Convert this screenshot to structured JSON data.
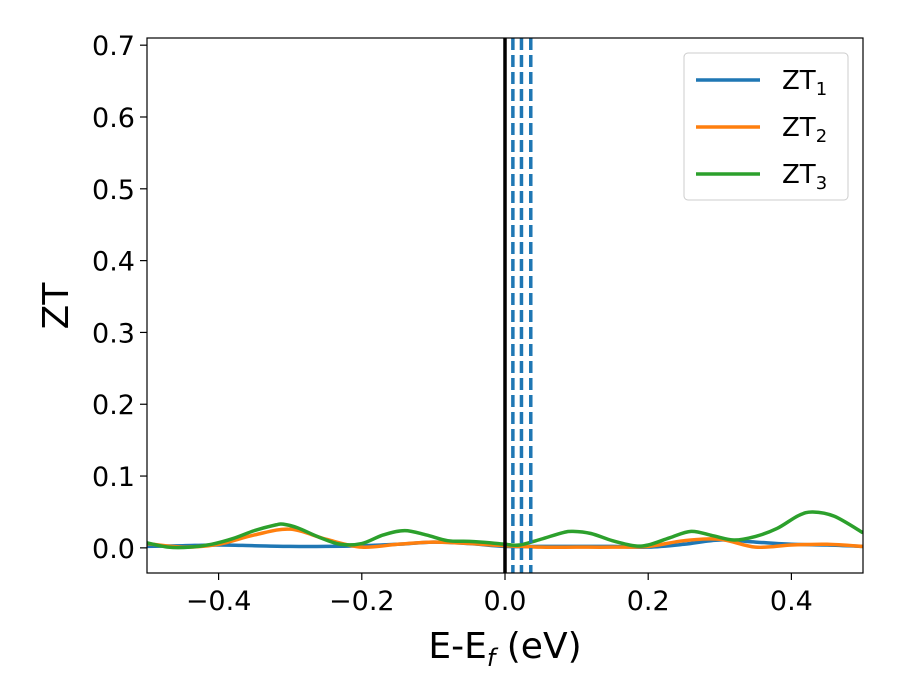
{
  "chart_data": {
    "type": "line",
    "title": "",
    "xlabel": "E-E",
    "xlabel_sub": "f",
    "xlabel_unit": " (eV)",
    "ylabel": "ZT",
    "xlim": [
      -0.5,
      0.5
    ],
    "ylim": [
      -0.035,
      0.71
    ],
    "x_ticks": [
      -0.4,
      -0.2,
      0.0,
      0.2,
      0.4
    ],
    "x_tick_labels": [
      "−0.4",
      "−0.2",
      "0.0",
      "0.2",
      "0.4"
    ],
    "y_ticks": [
      0.0,
      0.1,
      0.2,
      0.3,
      0.4,
      0.5,
      0.6,
      0.7
    ],
    "y_tick_labels": [
      "0.0",
      "0.1",
      "0.2",
      "0.3",
      "0.4",
      "0.5",
      "0.6",
      "0.7"
    ],
    "grid": false,
    "legend": "top-right",
    "series": [
      {
        "name": "ZT",
        "name_sub": "1",
        "color": "#1f77b4",
        "x": [
          -0.5,
          -0.45,
          -0.4,
          -0.35,
          -0.3,
          -0.25,
          -0.2,
          -0.15,
          -0.1,
          -0.05,
          0.0,
          0.05,
          0.1,
          0.15,
          0.2,
          0.25,
          0.3,
          0.35,
          0.4,
          0.45,
          0.5
        ],
        "y": [
          0.002,
          0.003,
          0.004,
          0.003,
          0.002,
          0.002,
          0.003,
          0.005,
          0.008,
          0.006,
          0.002,
          0.002,
          0.002,
          0.002,
          0.001,
          0.005,
          0.011,
          0.008,
          0.005,
          0.004,
          0.002
        ]
      },
      {
        "name": "ZT",
        "name_sub": "2",
        "color": "#ff7f0e",
        "x": [
          -0.5,
          -0.45,
          -0.4,
          -0.35,
          -0.3,
          -0.25,
          -0.2,
          -0.15,
          -0.1,
          -0.05,
          0.0,
          0.05,
          0.1,
          0.15,
          0.2,
          0.25,
          0.3,
          0.35,
          0.4,
          0.45,
          0.5
        ],
        "y": [
          0.006,
          0.001,
          0.005,
          0.018,
          0.026,
          0.012,
          0.001,
          0.005,
          0.008,
          0.006,
          0.003,
          0.001,
          0.001,
          0.001,
          0.002,
          0.01,
          0.012,
          0.001,
          0.004,
          0.005,
          0.002
        ]
      },
      {
        "name": "ZT",
        "name_sub": "3",
        "color": "#2ca02c",
        "x": [
          -0.5,
          -0.47,
          -0.44,
          -0.41,
          -0.38,
          -0.35,
          -0.32,
          -0.31,
          -0.29,
          -0.26,
          -0.23,
          -0.2,
          -0.17,
          -0.14,
          -0.11,
          -0.08,
          -0.05,
          -0.02,
          0.0,
          0.02,
          0.05,
          0.08,
          0.095,
          0.12,
          0.15,
          0.18,
          0.2,
          0.23,
          0.26,
          0.29,
          0.32,
          0.35,
          0.38,
          0.41,
          0.43,
          0.46,
          0.5
        ],
        "y": [
          0.007,
          0.001,
          0.001,
          0.005,
          0.013,
          0.024,
          0.032,
          0.033,
          0.028,
          0.015,
          0.005,
          0.006,
          0.018,
          0.024,
          0.018,
          0.01,
          0.009,
          0.007,
          0.005,
          0.004,
          0.012,
          0.021,
          0.023,
          0.02,
          0.01,
          0.003,
          0.004,
          0.014,
          0.023,
          0.017,
          0.011,
          0.016,
          0.027,
          0.045,
          0.05,
          0.044,
          0.021
        ]
      }
    ],
    "vlines": [
      {
        "x": 0.0,
        "color": "#000000",
        "style": "solid"
      },
      {
        "x": 0.011,
        "color": "#1f77b4",
        "style": "dashed"
      },
      {
        "x": 0.023,
        "color": "#1f77b4",
        "style": "dashed"
      },
      {
        "x": 0.036,
        "color": "#1f77b4",
        "style": "dashed"
      }
    ]
  }
}
